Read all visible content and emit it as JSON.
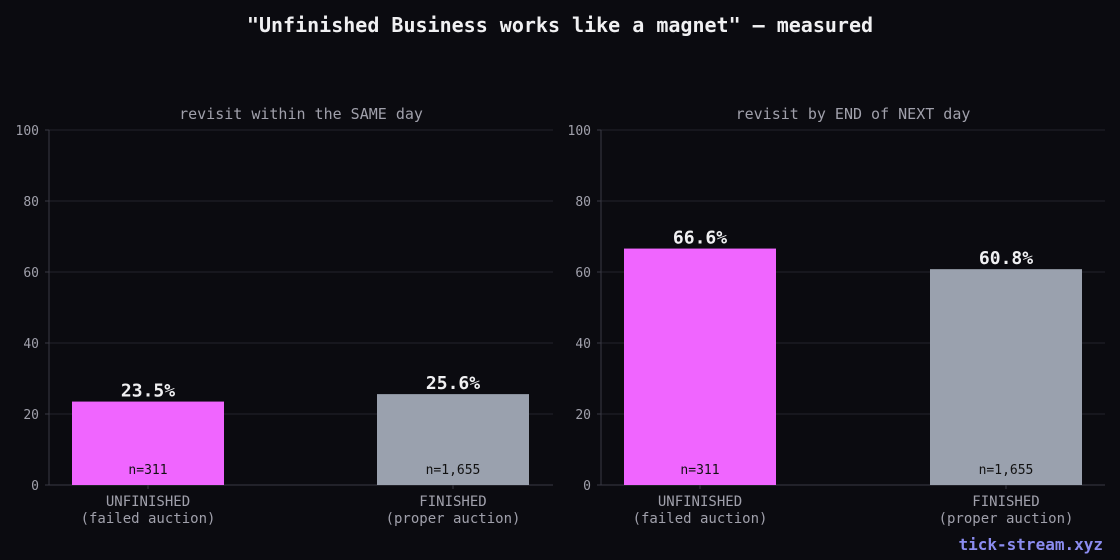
{
  "title": "\"Unfinished Business works like a magnet\" — measured",
  "watermark": "tick-stream.xyz",
  "colors": {
    "background": "#0b0b10",
    "unfinished": "#f065ff",
    "finished": "#9aa1ae",
    "grid": "#23232b",
    "axis": "#3a3a44",
    "tick_text": "#a0a0ab",
    "subtitle_text": "#a0a0ab",
    "value_text": "#f0f0f2",
    "n_text": "#111111",
    "watermark": "#8b8cf0"
  },
  "chart_data": [
    {
      "type": "bar",
      "title": "revisit within the SAME day",
      "categories": [
        "UNFINISHED\n(failed auction)",
        "FINISHED\n(proper auction)"
      ],
      "values": [
        23.5,
        25.6
      ],
      "value_labels": [
        "23.5%",
        "25.6%"
      ],
      "n_labels": [
        "n=311",
        "n=1,655"
      ],
      "bar_colors": [
        "#f065ff",
        "#9aa1ae"
      ],
      "ylim": [
        0,
        100
      ],
      "yticks": [
        0,
        20,
        40,
        60,
        80,
        100
      ],
      "grid": true,
      "xlabel": "",
      "ylabel": ""
    },
    {
      "type": "bar",
      "title": "revisit by END of NEXT day",
      "categories": [
        "UNFINISHED\n(failed auction)",
        "FINISHED\n(proper auction)"
      ],
      "values": [
        66.6,
        60.8
      ],
      "value_labels": [
        "66.6%",
        "60.8%"
      ],
      "n_labels": [
        "n=311",
        "n=1,655"
      ],
      "bar_colors": [
        "#f065ff",
        "#9aa1ae"
      ],
      "ylim": [
        0,
        100
      ],
      "yticks": [
        0,
        20,
        40,
        60,
        80,
        100
      ],
      "grid": true,
      "xlabel": "",
      "ylabel": ""
    }
  ]
}
